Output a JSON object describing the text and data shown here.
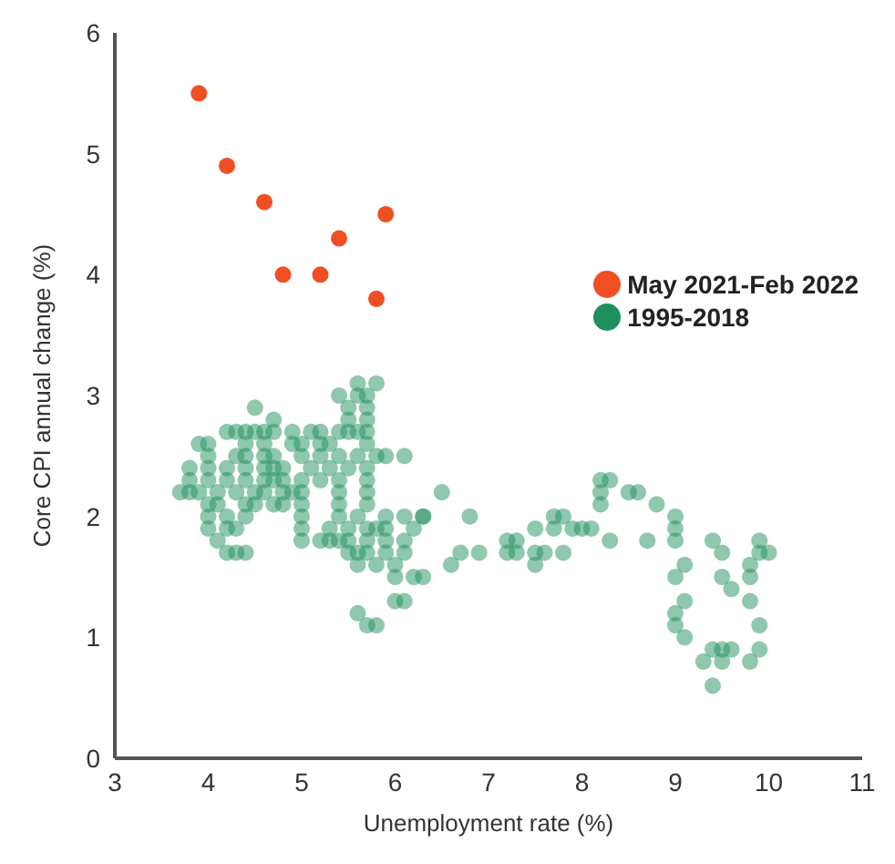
{
  "chart_data": {
    "type": "scatter",
    "xlabel": "Unemployment rate (%)",
    "ylabel": "Core CPI annual change (%)",
    "xlim": [
      3,
      11
    ],
    "xticks": [
      3,
      4,
      5,
      6,
      7,
      8,
      9,
      10,
      11
    ],
    "ylim": [
      0,
      6
    ],
    "yticks": [
      0,
      1,
      2,
      3,
      4,
      5,
      6
    ],
    "grid": false,
    "legend": "top right",
    "marker": "circle",
    "series": [
      {
        "name": "May 2021-Feb 2022",
        "color": "#f04e23",
        "x": [
          3.9,
          4.2,
          4.6,
          4.8,
          5.2,
          5.4,
          5.8,
          5.9
        ],
        "values": [
          5.5,
          4.9,
          4.6,
          4.0,
          4.0,
          4.3,
          3.8,
          4.5
        ]
      },
      {
        "name": "1995-2018",
        "color": "#1f8f5f",
        "x": [
          5.6,
          5.8,
          5.4,
          5.6,
          5.7,
          5.5,
          5.7,
          4.5,
          4.7,
          5.5,
          5.7,
          4.2,
          4.3,
          4.4,
          4.5,
          4.6,
          4.7,
          4.9,
          5.1,
          5.2,
          5.4,
          5.5,
          5.6,
          5.7,
          3.9,
          4.0,
          4.4,
          4.6,
          4.9,
          5.0,
          5.2,
          5.3,
          5.7,
          4.0,
          4.3,
          4.4,
          4.6,
          4.7,
          5.0,
          5.2,
          5.4,
          5.6,
          5.8,
          5.9,
          6.1,
          3.8,
          4.0,
          4.2,
          4.4,
          4.6,
          4.7,
          4.8,
          5.1,
          5.3,
          5.5,
          5.7,
          3.8,
          4.0,
          4.2,
          4.4,
          4.6,
          4.7,
          4.8,
          5.0,
          5.2,
          5.4,
          5.7,
          3.7,
          3.8,
          3.9,
          4.1,
          4.3,
          4.5,
          4.6,
          4.8,
          4.9,
          5.0,
          5.4,
          5.7,
          4.0,
          4.1,
          4.4,
          4.5,
          4.7,
          4.8,
          5.0,
          5.4,
          5.7,
          4.0,
          4.2,
          4.4,
          5.0,
          5.4,
          5.6,
          5.9,
          6.1,
          6.3,
          4.0,
          4.2,
          4.3,
          5.0,
          5.3,
          5.5,
          5.7,
          5.8,
          5.9,
          6.2,
          4.1,
          5.0,
          5.2,
          5.3,
          5.4,
          5.5,
          5.7,
          5.9,
          6.1,
          4.2,
          4.3,
          4.4,
          5.5,
          5.6,
          5.7,
          5.9,
          6.1,
          5.6,
          5.8,
          6.0,
          6.0,
          6.2,
          6.0,
          6.1,
          5.6,
          5.7,
          5.8,
          6.5,
          6.3,
          6.8,
          6.3,
          6.6,
          6.7,
          6.9,
          7.2,
          7.2,
          7.3,
          7.3,
          7.5,
          7.5,
          7.5,
          7.6,
          7.7,
          7.8,
          7.7,
          7.8,
          7.9,
          8.0,
          8.1,
          8.2,
          8.2,
          8.3,
          8.2,
          8.3,
          8.5,
          8.6,
          8.8,
          8.7,
          9.0,
          9.0,
          9.0,
          9.1,
          9.0,
          9.1,
          9.0,
          9.0,
          9.1,
          9.4,
          9.5,
          9.5,
          9.6,
          9.4,
          9.5,
          9.6,
          9.3,
          9.5,
          9.4,
          9.9,
          9.9,
          10.0,
          9.8,
          9.8,
          9.8,
          9.9,
          9.9,
          9.8
        ],
        "values": [
          3.1,
          3.1,
          3.0,
          3.0,
          3.0,
          2.9,
          2.9,
          2.9,
          2.8,
          2.8,
          2.8,
          2.7,
          2.7,
          2.7,
          2.7,
          2.7,
          2.7,
          2.7,
          2.7,
          2.7,
          2.7,
          2.7,
          2.7,
          2.7,
          2.6,
          2.6,
          2.6,
          2.6,
          2.6,
          2.6,
          2.6,
          2.6,
          2.6,
          2.5,
          2.5,
          2.5,
          2.5,
          2.5,
          2.5,
          2.5,
          2.5,
          2.5,
          2.5,
          2.5,
          2.5,
          2.4,
          2.4,
          2.4,
          2.4,
          2.4,
          2.4,
          2.4,
          2.4,
          2.4,
          2.4,
          2.4,
          2.3,
          2.3,
          2.3,
          2.3,
          2.3,
          2.3,
          2.3,
          2.3,
          2.3,
          2.3,
          2.3,
          2.2,
          2.2,
          2.2,
          2.2,
          2.2,
          2.2,
          2.2,
          2.2,
          2.2,
          2.2,
          2.2,
          2.2,
          2.1,
          2.1,
          2.1,
          2.1,
          2.1,
          2.1,
          2.1,
          2.1,
          2.1,
          2.0,
          2.0,
          2.0,
          2.0,
          2.0,
          2.0,
          2.0,
          2.0,
          2.0,
          1.9,
          1.9,
          1.9,
          1.9,
          1.9,
          1.9,
          1.9,
          1.9,
          1.9,
          1.9,
          1.8,
          1.8,
          1.8,
          1.8,
          1.8,
          1.8,
          1.8,
          1.8,
          1.8,
          1.7,
          1.7,
          1.7,
          1.7,
          1.7,
          1.7,
          1.7,
          1.7,
          1.6,
          1.6,
          1.6,
          1.5,
          1.5,
          1.3,
          1.3,
          1.2,
          1.1,
          1.1,
          2.2,
          2.0,
          2.0,
          1.5,
          1.6,
          1.7,
          1.7,
          1.8,
          1.7,
          1.8,
          1.7,
          1.9,
          1.7,
          1.6,
          1.7,
          2.0,
          2.0,
          1.9,
          1.7,
          1.9,
          1.9,
          1.9,
          2.3,
          2.2,
          2.3,
          2.1,
          1.8,
          2.2,
          2.2,
          2.1,
          1.8,
          2.0,
          1.9,
          1.8,
          1.6,
          1.5,
          1.3,
          1.2,
          1.1,
          1.0,
          1.8,
          1.7,
          1.5,
          1.4,
          0.9,
          0.9,
          0.9,
          0.8,
          0.8,
          0.6,
          1.8,
          1.7,
          1.7,
          1.6,
          1.5,
          1.3,
          1.1,
          0.9,
          0.8
        ]
      }
    ]
  }
}
